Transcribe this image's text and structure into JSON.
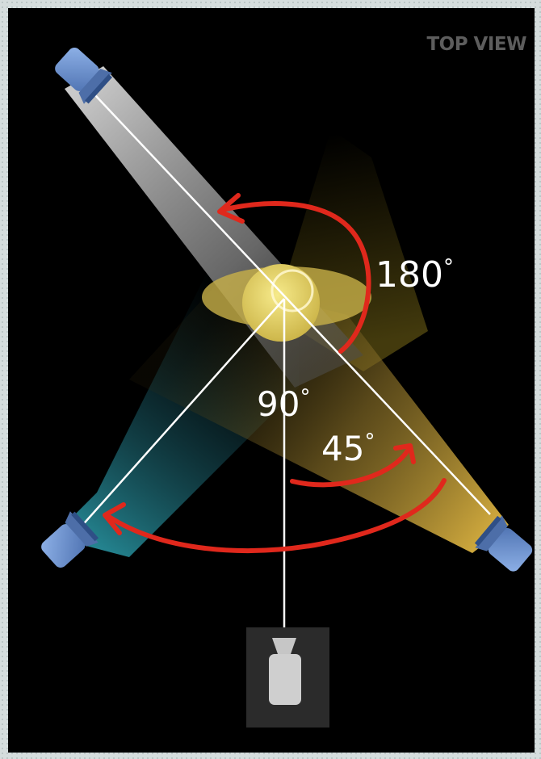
{
  "view_label": "TOP VIEW",
  "angles": {
    "a180": "180",
    "a90": "90",
    "a45": "45",
    "degree_symbol": "°"
  },
  "colors": {
    "background": "#000000",
    "arrow": "#e0281c",
    "guide_line": "#ffffff",
    "light_body": "#6a8fd0",
    "beam_white": "#c8c8c8",
    "beam_yellow": "#c9a23a",
    "beam_cyan": "#1f7a86",
    "subject": "#e0cc5a"
  },
  "icons": {
    "light": "spotlight-icon",
    "camera": "camera-icon",
    "subject": "subject-circle"
  }
}
